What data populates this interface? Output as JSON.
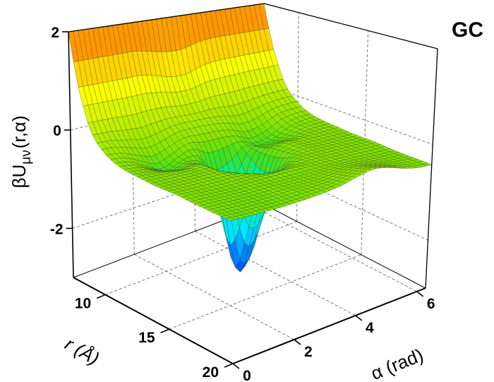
{
  "chart_data": {
    "type": "surface",
    "panel_label": "GC",
    "r_axis": {
      "label": "r (Å)",
      "range": [
        7.5,
        20
      ],
      "ticks": [
        10,
        15,
        20
      ]
    },
    "alpha_axis": {
      "label": "α (rad)",
      "range": [
        0,
        6.2832
      ],
      "ticks": [
        0,
        2,
        4,
        6
      ]
    },
    "z_axis": {
      "label_main": "βU",
      "label_sub": "μν",
      "label_args": "(r,α)",
      "range": [
        -3,
        2
      ],
      "ticks": [
        2,
        0,
        -2
      ]
    },
    "grid": true,
    "r_values": [
      7.5,
      8,
      9,
      10,
      11,
      12,
      13,
      14,
      15,
      16,
      17,
      18,
      19,
      20
    ],
    "alpha_values": [
      0,
      0.5,
      1,
      1.5,
      2,
      2.5,
      3,
      3.5,
      4,
      4.5,
      5,
      5.5,
      6
    ],
    "z_values": [
      [
        2.0,
        2.0,
        2.0,
        2.0,
        2.0,
        2.0,
        2.0,
        2.0,
        2.0,
        2.0,
        2.0,
        2.0,
        2.0
      ],
      [
        1.12,
        1.12,
        1.12,
        1.12,
        1.12,
        1.04,
        0.95,
        0.95,
        1.07,
        1.12,
        1.12,
        1.12,
        1.12
      ],
      [
        0.21,
        0.2,
        0.18,
        0.16,
        0.18,
        0.18,
        0.14,
        0.14,
        0.17,
        0.16,
        0.18,
        0.2,
        0.21
      ],
      [
        -0.15,
        -0.18,
        -0.28,
        -0.36,
        -0.28,
        -0.18,
        -0.18,
        -0.2,
        -0.25,
        -0.36,
        -0.31,
        -0.19,
        -0.15
      ],
      [
        -0.3,
        -0.35,
        -0.51,
        -0.65,
        -0.51,
        -0.42,
        -0.6,
        -0.58,
        -0.52,
        -0.64,
        -0.56,
        -0.37,
        -0.31
      ],
      [
        -0.36,
        -0.39,
        -0.49,
        -0.57,
        -0.51,
        -0.73,
        -1.7,
        -1.52,
        -0.67,
        -0.57,
        -0.52,
        -0.4,
        -0.36
      ],
      [
        -0.38,
        -0.39,
        -0.41,
        -0.43,
        -0.44,
        -0.94,
        -2.75,
        -2.45,
        -0.74,
        -0.43,
        -0.41,
        -0.39,
        -0.38
      ],
      [
        -0.4,
        -0.4,
        -0.4,
        -0.4,
        -0.42,
        -0.76,
        -1.87,
        -1.65,
        -0.63,
        -0.4,
        -0.4,
        -0.4,
        -0.4
      ],
      [
        -0.4,
        -0.4,
        -0.4,
        -0.4,
        -0.4,
        -0.48,
        -0.73,
        -0.68,
        -0.45,
        -0.4,
        -0.4,
        -0.4,
        -0.4
      ],
      [
        -0.4,
        -0.41,
        -0.42,
        -0.42,
        -0.41,
        -0.41,
        -0.43,
        -0.42,
        -0.41,
        -0.4,
        -0.4,
        -0.4,
        -0.4
      ],
      [
        -0.42,
        -0.42,
        -0.43,
        -0.43,
        -0.42,
        -0.42,
        -0.42,
        -0.42,
        -0.41,
        -0.4,
        -0.4,
        -0.41,
        -0.42
      ],
      [
        -0.43,
        -0.43,
        -0.44,
        -0.44,
        -0.43,
        -0.42,
        -0.42,
        -0.41,
        -0.38,
        -0.35,
        -0.37,
        -0.4,
        -0.42
      ],
      [
        -0.44,
        -0.45,
        -0.45,
        -0.45,
        -0.44,
        -0.42,
        -0.41,
        -0.38,
        -0.32,
        -0.27,
        -0.31,
        -0.38,
        -0.42
      ],
      [
        -0.45,
        -0.46,
        -0.46,
        -0.46,
        -0.45,
        -0.43,
        -0.4,
        -0.35,
        -0.26,
        -0.2,
        -0.26,
        -0.36,
        -0.42
      ]
    ],
    "colormap": [
      {
        "z": -3.0,
        "color": "#0030e0"
      },
      {
        "z": -2.4,
        "color": "#0080ff"
      },
      {
        "z": -1.8,
        "color": "#00e8ff"
      },
      {
        "z": -1.2,
        "color": "#00f0a0"
      },
      {
        "z": -0.7,
        "color": "#40e020"
      },
      {
        "z": -0.4,
        "color": "#84e400"
      },
      {
        "z": 0.2,
        "color": "#c4f000"
      },
      {
        "z": 0.8,
        "color": "#ffff00"
      },
      {
        "z": 1.5,
        "color": "#ffb000"
      },
      {
        "z": 2.0,
        "color": "#ff7800"
      }
    ]
  }
}
